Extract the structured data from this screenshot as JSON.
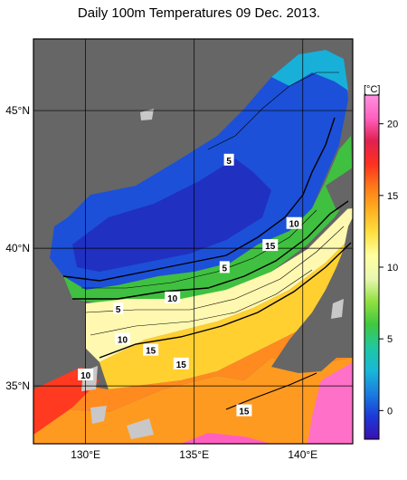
{
  "title": "Daily 100m Temperatures 09 Dec. 2013.",
  "lat_labels": [
    {
      "text": "45°N",
      "value": 45
    },
    {
      "text": "40°N",
      "value": 40
    },
    {
      "text": "35°N",
      "value": 35
    }
  ],
  "lon_labels": [
    {
      "text": "130°E",
      "value": 130
    },
    {
      "text": "135°E",
      "value": 135
    },
    {
      "text": "140°E",
      "value": 140
    }
  ],
  "colorbar": {
    "unit": "[°C]",
    "ticks": [
      0,
      5,
      10,
      15,
      20
    ],
    "range": [
      -2,
      22
    ],
    "colors": [
      "#3a10b0",
      "#1c3ad8",
      "#1a7ee0",
      "#18b8d8",
      "#20c8a0",
      "#40c840",
      "#90e040",
      "#e8f8b0",
      "#ffffa0",
      "#ffe040",
      "#ffb020",
      "#ff7a18",
      "#ff3020",
      "#e02050",
      "#ff60c0",
      "#ff90e0"
    ]
  },
  "contour_labels": [
    {
      "text": "5",
      "lon": 136.6,
      "lat": 43.2
    },
    {
      "text": "10",
      "lon": 139.6,
      "lat": 40.9
    },
    {
      "text": "15",
      "lon": 138.5,
      "lat": 40.1
    },
    {
      "text": "5",
      "lon": 136.4,
      "lat": 39.3
    },
    {
      "text": "10",
      "lon": 134.0,
      "lat": 38.2
    },
    {
      "text": "5",
      "lon": 131.5,
      "lat": 37.8
    },
    {
      "text": "10",
      "lon": 131.7,
      "lat": 36.7
    },
    {
      "text": "15",
      "lon": 133.0,
      "lat": 36.3
    },
    {
      "text": "15",
      "lon": 134.4,
      "lat": 35.8
    },
    {
      "text": "10",
      "lon": 130.0,
      "lat": 35.4
    },
    {
      "text": "15",
      "lon": 137.3,
      "lat": 34.1
    }
  ],
  "colors": {
    "land": "#666666",
    "nodata": "#c8c8c8",
    "frame": "#000000"
  }
}
